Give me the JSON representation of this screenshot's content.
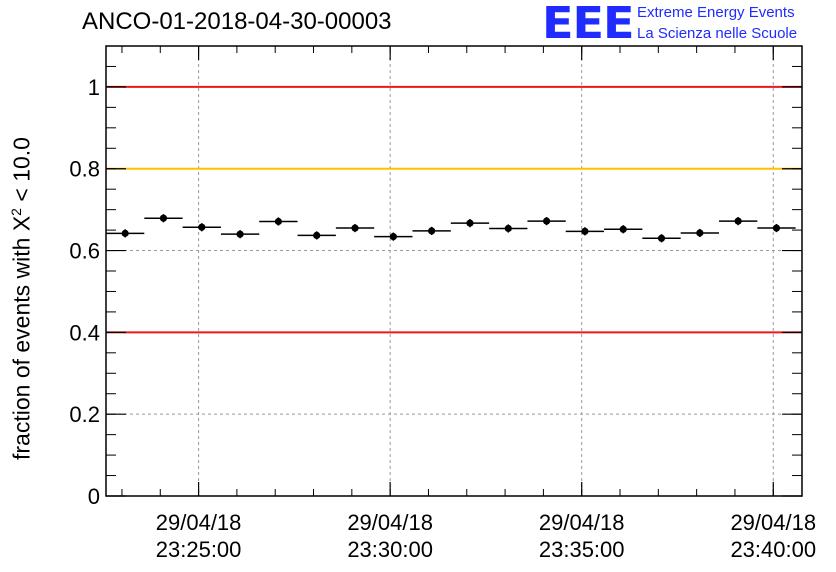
{
  "header": {
    "title": "ANCO-01-2018-04-30-00003"
  },
  "logo": {
    "mark": "EEE",
    "line1": "Extreme Energy Events",
    "line2": "La Scienza nelle Scuole"
  },
  "chart_data": {
    "type": "scatter",
    "ylabel": {
      "prefix": "fraction of events with ",
      "symbol": "X",
      "sup": "2",
      "suffix": " < 10.0"
    },
    "ylim": [
      0,
      1.1
    ],
    "yticks": [
      0,
      0.2,
      0.4,
      0.6,
      0.8,
      1
    ],
    "ytick_labels": [
      "0",
      "0.2",
      "0.4",
      "0.6",
      "0.8",
      "1"
    ],
    "xlim": [
      "2018-04-29 23:22:35",
      "2018-04-29 23:40:45"
    ],
    "xticks": [
      {
        "time": "2018-04-29 23:25:00",
        "date_label": "29/04/18",
        "time_label": "23:25:00"
      },
      {
        "time": "2018-04-29 23:30:00",
        "date_label": "29/04/18",
        "time_label": "23:30:00"
      },
      {
        "time": "2018-04-29 23:35:00",
        "date_label": "29/04/18",
        "time_label": "23:35:00"
      },
      {
        "time": "2018-04-29 23:40:00",
        "date_label": "29/04/18",
        "time_label": "23:40:00"
      }
    ],
    "grid": true,
    "reference_lines": [
      {
        "y": 1.0,
        "color": "#e8181b"
      },
      {
        "y": 0.8,
        "color": "#ffc000"
      },
      {
        "y": 0.4,
        "color": "#e8181b"
      }
    ],
    "point_color": "#000000",
    "series": [
      {
        "bin_width_seconds": 60,
        "x": [
          "2018-04-29 23:23:05",
          "2018-04-29 23:24:05",
          "2018-04-29 23:25:05",
          "2018-04-29 23:26:05",
          "2018-04-29 23:27:05",
          "2018-04-29 23:28:05",
          "2018-04-29 23:29:05",
          "2018-04-29 23:30:05",
          "2018-04-29 23:31:05",
          "2018-04-29 23:32:05",
          "2018-04-29 23:33:05",
          "2018-04-29 23:34:05",
          "2018-04-29 23:35:05",
          "2018-04-29 23:36:05",
          "2018-04-29 23:37:05",
          "2018-04-29 23:38:05",
          "2018-04-29 23:39:05",
          "2018-04-29 23:40:05"
        ],
        "y": [
          0.642,
          0.679,
          0.657,
          0.64,
          0.671,
          0.637,
          0.655,
          0.634,
          0.648,
          0.667,
          0.654,
          0.672,
          0.647,
          0.652,
          0.63,
          0.643,
          0.672,
          0.655
        ],
        "y_err": [
          0.01,
          0.01,
          0.01,
          0.01,
          0.01,
          0.01,
          0.01,
          0.01,
          0.01,
          0.01,
          0.01,
          0.01,
          0.01,
          0.01,
          0.01,
          0.01,
          0.01,
          0.01
        ]
      }
    ]
  }
}
